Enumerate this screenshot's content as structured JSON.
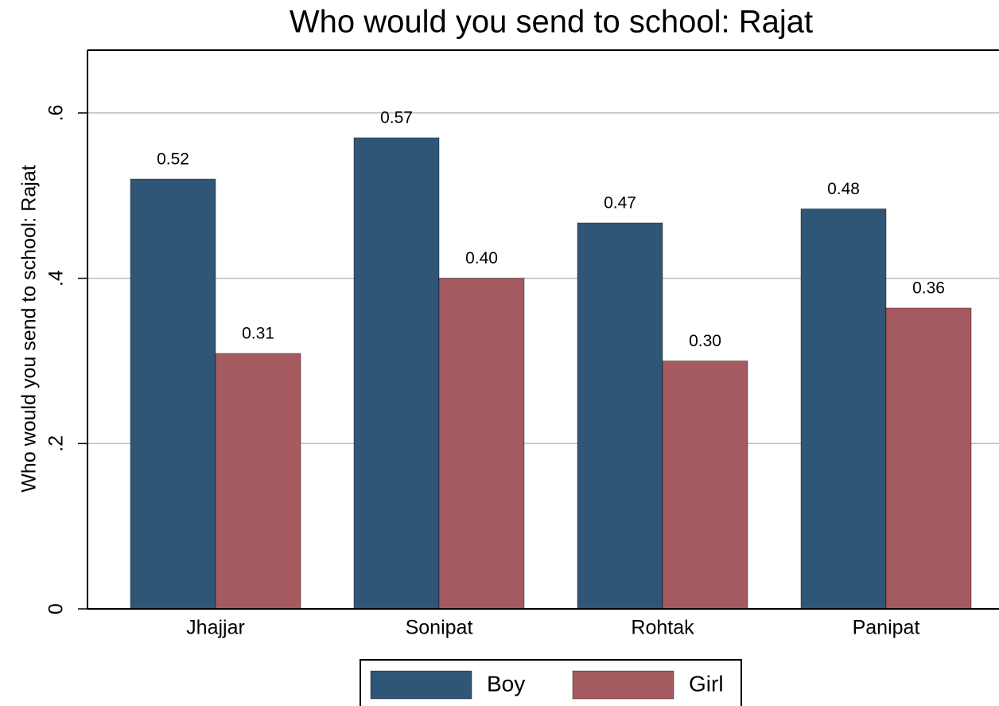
{
  "chart_data": {
    "type": "bar",
    "title": "Who would you send to school: Rajat",
    "y_label": "Who would you send to school: Rajat",
    "categories": [
      "Jhajjar",
      "Sonipat",
      "Rohtak",
      "Panipat"
    ],
    "series": [
      {
        "name": "Boy",
        "color": "#2f5577",
        "values": [
          0.52,
          0.57,
          0.467,
          0.484
        ],
        "value_labels": [
          "0.52",
          "0.57",
          "0.47",
          "0.48"
        ]
      },
      {
        "name": "Girl",
        "color": "#a45a5e",
        "values": [
          0.309,
          0.4,
          0.3,
          0.364
        ],
        "value_labels": [
          "0.31",
          "0.40",
          "0.30",
          "0.36"
        ]
      }
    ],
    "ylim": [
      0,
      0.676
    ],
    "yticks": [
      0,
      {
        "value": 0.2,
        "label": ".2"
      },
      {
        "value": 0.4,
        "label": ".4"
      },
      {
        "value": 0.6,
        "label": ".6"
      }
    ],
    "grid": true,
    "legend": "bottom"
  }
}
